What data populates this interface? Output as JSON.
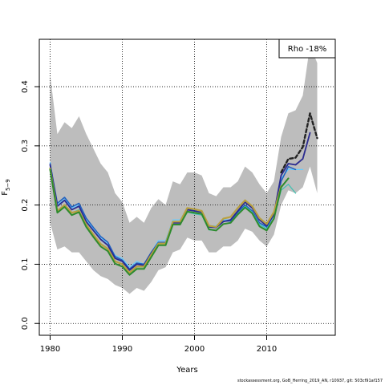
{
  "chart_data": {
    "type": "line",
    "xlabel": "Years",
    "ylabel": "F5-9",
    "ylabel_main": "F",
    "ylabel_sub": "5−9",
    "xlim": [
      1978.5,
      2019.5
    ],
    "ylim": [
      -0.02,
      0.48
    ],
    "x_ticks": [
      1980,
      1990,
      2000,
      2010
    ],
    "x_tick_labels": [
      "1980",
      "1990",
      "2000",
      "2010"
    ],
    "y_ticks": [
      0.0,
      0.1,
      0.2,
      0.3,
      0.4
    ],
    "y_tick_labels": [
      "0.0",
      "0.1",
      "0.2",
      "0.3",
      "0.4"
    ],
    "grid": true,
    "legend": {
      "text": "Rho -18%",
      "placement": "top-right"
    },
    "confidence_band": {
      "color": "#bdbdbd",
      "x": [
        1980,
        1981,
        1982,
        1983,
        1984,
        1985,
        1986,
        1987,
        1988,
        1989,
        1990,
        1991,
        1992,
        1993,
        1994,
        1995,
        1996,
        1997,
        1998,
        1999,
        2000,
        2001,
        2002,
        2003,
        2004,
        2005,
        2006,
        2007,
        2008,
        2009,
        2010,
        2011,
        2012,
        2013,
        2014,
        2015,
        2016,
        2017
      ],
      "upper": [
        0.42,
        0.32,
        0.34,
        0.33,
        0.35,
        0.32,
        0.295,
        0.27,
        0.255,
        0.22,
        0.205,
        0.17,
        0.18,
        0.17,
        0.195,
        0.21,
        0.2,
        0.24,
        0.235,
        0.255,
        0.255,
        0.25,
        0.22,
        0.215,
        0.23,
        0.23,
        0.24,
        0.265,
        0.255,
        0.235,
        0.22,
        0.24,
        0.315,
        0.355,
        0.36,
        0.385,
        0.47,
        0.44
      ],
      "lower": [
        0.17,
        0.125,
        0.13,
        0.12,
        0.12,
        0.105,
        0.09,
        0.08,
        0.075,
        0.065,
        0.06,
        0.05,
        0.06,
        0.055,
        0.07,
        0.09,
        0.095,
        0.12,
        0.125,
        0.145,
        0.14,
        0.14,
        0.12,
        0.12,
        0.13,
        0.13,
        0.14,
        0.16,
        0.155,
        0.14,
        0.13,
        0.15,
        0.2,
        0.225,
        0.22,
        0.23,
        0.265,
        0.22
      ]
    },
    "series": [
      {
        "color": "#66ccff",
        "dash": "",
        "width": 1.2,
        "x": [
          1980,
          1981,
          1982,
          1983,
          1984,
          1985,
          1986,
          1987,
          1988,
          1989,
          1990,
          1991,
          1992,
          1993,
          1994,
          1995,
          1996,
          1997,
          1998,
          1999,
          2000,
          2001,
          2002,
          2003,
          2004,
          2005,
          2006,
          2007,
          2008,
          2009,
          2010,
          2011,
          2012,
          2013,
          2014,
          2015
        ],
        "values": [
          0.272,
          0.2,
          0.21,
          0.195,
          0.2,
          0.175,
          0.16,
          0.145,
          0.135,
          0.115,
          0.11,
          0.095,
          0.105,
          0.1,
          0.12,
          0.14,
          0.14,
          0.175,
          0.175,
          0.195,
          0.192,
          0.19,
          0.165,
          0.165,
          0.175,
          0.175,
          0.19,
          0.2,
          0.19,
          0.17,
          0.16,
          0.185,
          0.245,
          0.26,
          0.26,
          0.26
        ]
      },
      {
        "color": "#1f5fbf",
        "dash": "",
        "width": 1.5,
        "x": [
          1980,
          1981,
          1982,
          1983,
          1984,
          1985,
          1986,
          1987,
          1988,
          1989,
          1990,
          1991,
          1992,
          1993,
          1994,
          1995,
          1996,
          1997,
          1998,
          1999,
          2000,
          2001,
          2002,
          2003,
          2004,
          2005,
          2006,
          2007,
          2008,
          2009,
          2010,
          2011,
          2012,
          2013,
          2014
        ],
        "values": [
          0.27,
          0.203,
          0.213,
          0.197,
          0.203,
          0.178,
          0.162,
          0.147,
          0.137,
          0.113,
          0.107,
          0.092,
          0.102,
          0.1,
          0.12,
          0.137,
          0.137,
          0.172,
          0.172,
          0.193,
          0.19,
          0.188,
          0.163,
          0.163,
          0.173,
          0.173,
          0.188,
          0.2,
          0.19,
          0.17,
          0.163,
          0.183,
          0.24,
          0.265,
          0.26
        ]
      },
      {
        "color": "#2a2a90",
        "dash": "",
        "width": 1.8,
        "x": [
          1980,
          1981,
          1982,
          1983,
          1984,
          1985,
          1986,
          1987,
          1988,
          1989,
          1990,
          1991,
          1992,
          1993,
          1994,
          1995,
          1996,
          1997,
          1998,
          1999,
          2000,
          2001,
          2002,
          2003,
          2004,
          2005,
          2006,
          2007,
          2008,
          2009,
          2010,
          2011,
          2012,
          2013,
          2014,
          2015,
          2016
        ],
        "values": [
          0.268,
          0.198,
          0.208,
          0.192,
          0.198,
          0.172,
          0.157,
          0.142,
          0.132,
          0.11,
          0.105,
          0.09,
          0.1,
          0.098,
          0.118,
          0.135,
          0.135,
          0.17,
          0.17,
          0.192,
          0.19,
          0.188,
          0.163,
          0.162,
          0.172,
          0.175,
          0.19,
          0.205,
          0.195,
          0.175,
          0.165,
          0.185,
          0.25,
          0.27,
          0.268,
          0.278,
          0.322
        ]
      },
      {
        "color": "#3ec0b0",
        "dash": "",
        "width": 1.2,
        "x": [
          1980,
          1981,
          1982,
          1983,
          1984,
          1985,
          1986,
          1987,
          1988,
          1989,
          1990,
          1991,
          1992,
          1993,
          1994,
          1995,
          1996,
          1997,
          1998,
          1999,
          2000,
          2001,
          2002,
          2003,
          2004,
          2005,
          2006,
          2007,
          2008,
          2009,
          2010,
          2011,
          2012,
          2013,
          2014
        ],
        "values": [
          0.262,
          0.19,
          0.2,
          0.187,
          0.192,
          0.165,
          0.15,
          0.135,
          0.127,
          0.105,
          0.1,
          0.085,
          0.095,
          0.095,
          0.115,
          0.132,
          0.132,
          0.167,
          0.167,
          0.188,
          0.185,
          0.183,
          0.158,
          0.157,
          0.168,
          0.17,
          0.185,
          0.198,
          0.188,
          0.167,
          0.16,
          0.178,
          0.225,
          0.235,
          0.22
        ]
      },
      {
        "color": "#b8a040",
        "dash": "",
        "width": 2.2,
        "x": [
          1980,
          1981,
          1982,
          1983,
          1984,
          1985,
          1986,
          1987,
          1988,
          1989,
          1990,
          1991,
          1992,
          1993,
          1994,
          1995,
          1996,
          1997,
          1998,
          1999,
          2000,
          2001,
          2002,
          2003,
          2004,
          2005,
          2006,
          2007,
          2008,
          2009,
          2010,
          2011,
          2012
        ],
        "values": [
          0.262,
          0.19,
          0.2,
          0.187,
          0.19,
          0.167,
          0.15,
          0.134,
          0.126,
          0.105,
          0.1,
          0.086,
          0.096,
          0.096,
          0.116,
          0.135,
          0.135,
          0.172,
          0.172,
          0.195,
          0.193,
          0.19,
          0.165,
          0.163,
          0.177,
          0.18,
          0.195,
          0.208,
          0.198,
          0.178,
          0.168,
          0.188,
          0.232
        ]
      },
      {
        "color": "#2e8b2e",
        "dash": "",
        "width": 2.0,
        "x": [
          1980,
          1981,
          1982,
          1983,
          1984,
          1985,
          1986,
          1987,
          1988,
          1989,
          1990,
          1991,
          1992,
          1993,
          1994,
          1995,
          1996,
          1997,
          1998,
          1999,
          2000,
          2001,
          2002,
          2003,
          2004,
          2005,
          2006,
          2007,
          2008,
          2009,
          2010,
          2011,
          2012,
          2013
        ],
        "values": [
          0.26,
          0.187,
          0.197,
          0.183,
          0.188,
          0.163,
          0.146,
          0.13,
          0.122,
          0.101,
          0.096,
          0.082,
          0.092,
          0.092,
          0.112,
          0.132,
          0.132,
          0.167,
          0.167,
          0.189,
          0.187,
          0.185,
          0.159,
          0.157,
          0.168,
          0.17,
          0.184,
          0.196,
          0.186,
          0.164,
          0.157,
          0.177,
          0.23,
          0.245
        ]
      },
      {
        "color": "#222222",
        "dash": "4,3",
        "width": 2.4,
        "x": [
          2012,
          2013,
          2014,
          2015,
          2016,
          2017
        ],
        "values": [
          0.255,
          0.278,
          0.28,
          0.298,
          0.355,
          0.313
        ]
      }
    ]
  },
  "footer": "stockassessment.org, GoB_Herring_2019_AN, r10937, git: 503cf91af157"
}
